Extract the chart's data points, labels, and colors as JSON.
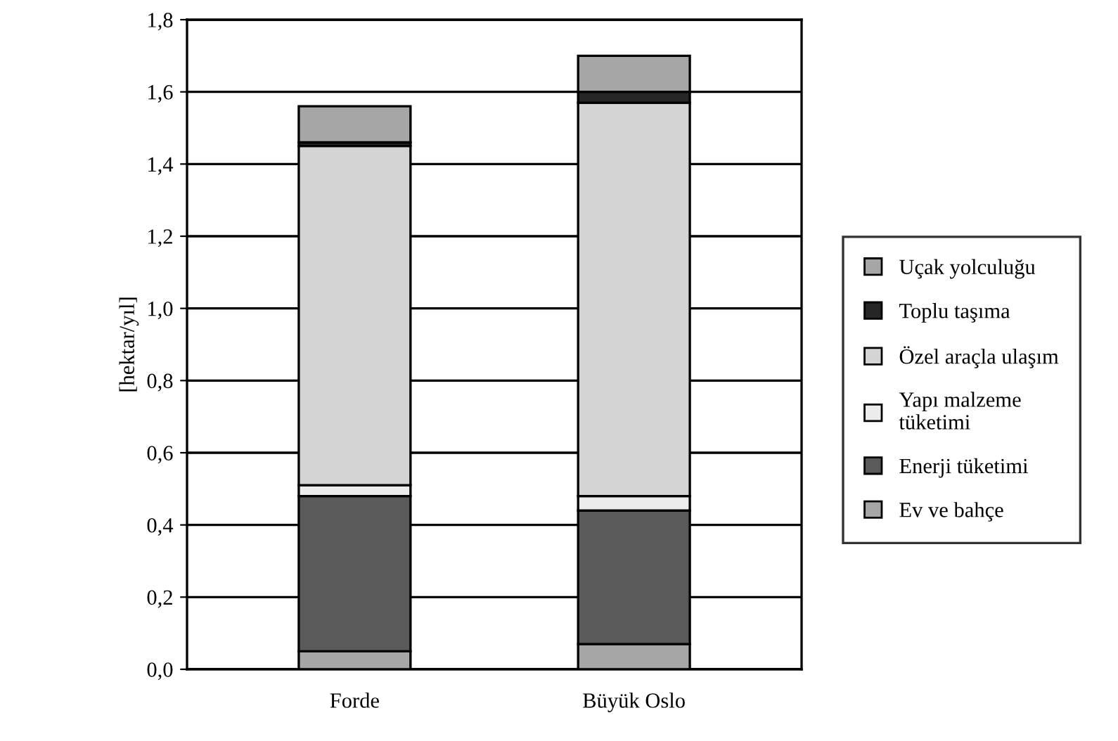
{
  "chart_data": {
    "type": "bar",
    "stacked": true,
    "ylabel": "[hektar/yıl]",
    "categories": [
      "Forde",
      "Büyük Oslo"
    ],
    "series": [
      {
        "name": "Ev ve bahçe",
        "color": "#a6a6a6",
        "values": [
          0.05,
          0.07
        ]
      },
      {
        "name": "Enerji tüketimi",
        "color": "#5a5a5a",
        "values": [
          0.43,
          0.37
        ]
      },
      {
        "name": "Yapı malzeme\ntüketimi",
        "color": "#ececec",
        "values": [
          0.03,
          0.04
        ]
      },
      {
        "name": "Özel araçla ulaşım",
        "color": "#d4d4d4",
        "values": [
          0.94,
          1.09
        ]
      },
      {
        "name": "Toplu taşıma",
        "color": "#262626",
        "values": [
          0.01,
          0.03
        ]
      },
      {
        "name": "Uçak yolculuğu",
        "color": "#a6a6a6",
        "values": [
          0.1,
          0.1
        ]
      }
    ],
    "ylim": [
      0,
      1.8
    ],
    "yticks": [
      {
        "value": 0,
        "label": "0,0"
      },
      {
        "value": 0.2,
        "label": "0,2"
      },
      {
        "value": 0.4,
        "label": "0,4"
      },
      {
        "value": 0.6,
        "label": "0,6"
      },
      {
        "value": 0.8,
        "label": "0,8"
      },
      {
        "value": 1.0,
        "label": "1,0"
      },
      {
        "value": 1.2,
        "label": "1,2"
      },
      {
        "value": 1.4,
        "label": "1,4"
      },
      {
        "value": 1.6,
        "label": "1,6"
      },
      {
        "value": 1.8,
        "label": "1,8"
      }
    ],
    "grid": "y",
    "legend": "right"
  }
}
